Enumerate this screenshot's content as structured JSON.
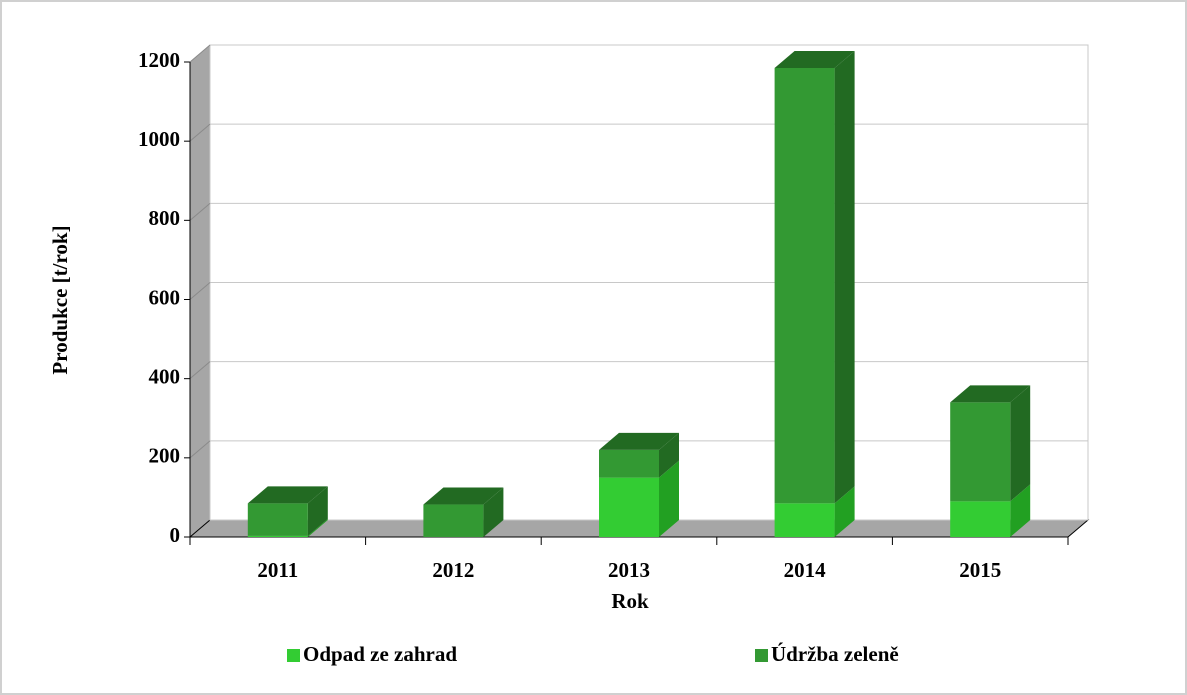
{
  "chart_data": {
    "type": "bar3d_stacked",
    "x_label": "Rok",
    "y_label": "Produkce [t/rok]",
    "categories": [
      "2011",
      "2012",
      "2013",
      "2014",
      "2015"
    ],
    "series": [
      {
        "name": "Odpad ze zahrad",
        "color": "#33cc33",
        "side_color": "#22a022",
        "values": [
          3,
          0,
          150,
          85,
          90
        ]
      },
      {
        "name": "Údržba zeleně",
        "color": "#339933",
        "side_color": "#226a22",
        "values": [
          82,
          82,
          70,
          1100,
          250
        ]
      }
    ],
    "ylim": [
      0,
      1200
    ],
    "yticks": [
      0,
      200,
      400,
      600,
      800,
      1000,
      1200
    ],
    "grid": true,
    "legend": "bottom"
  }
}
